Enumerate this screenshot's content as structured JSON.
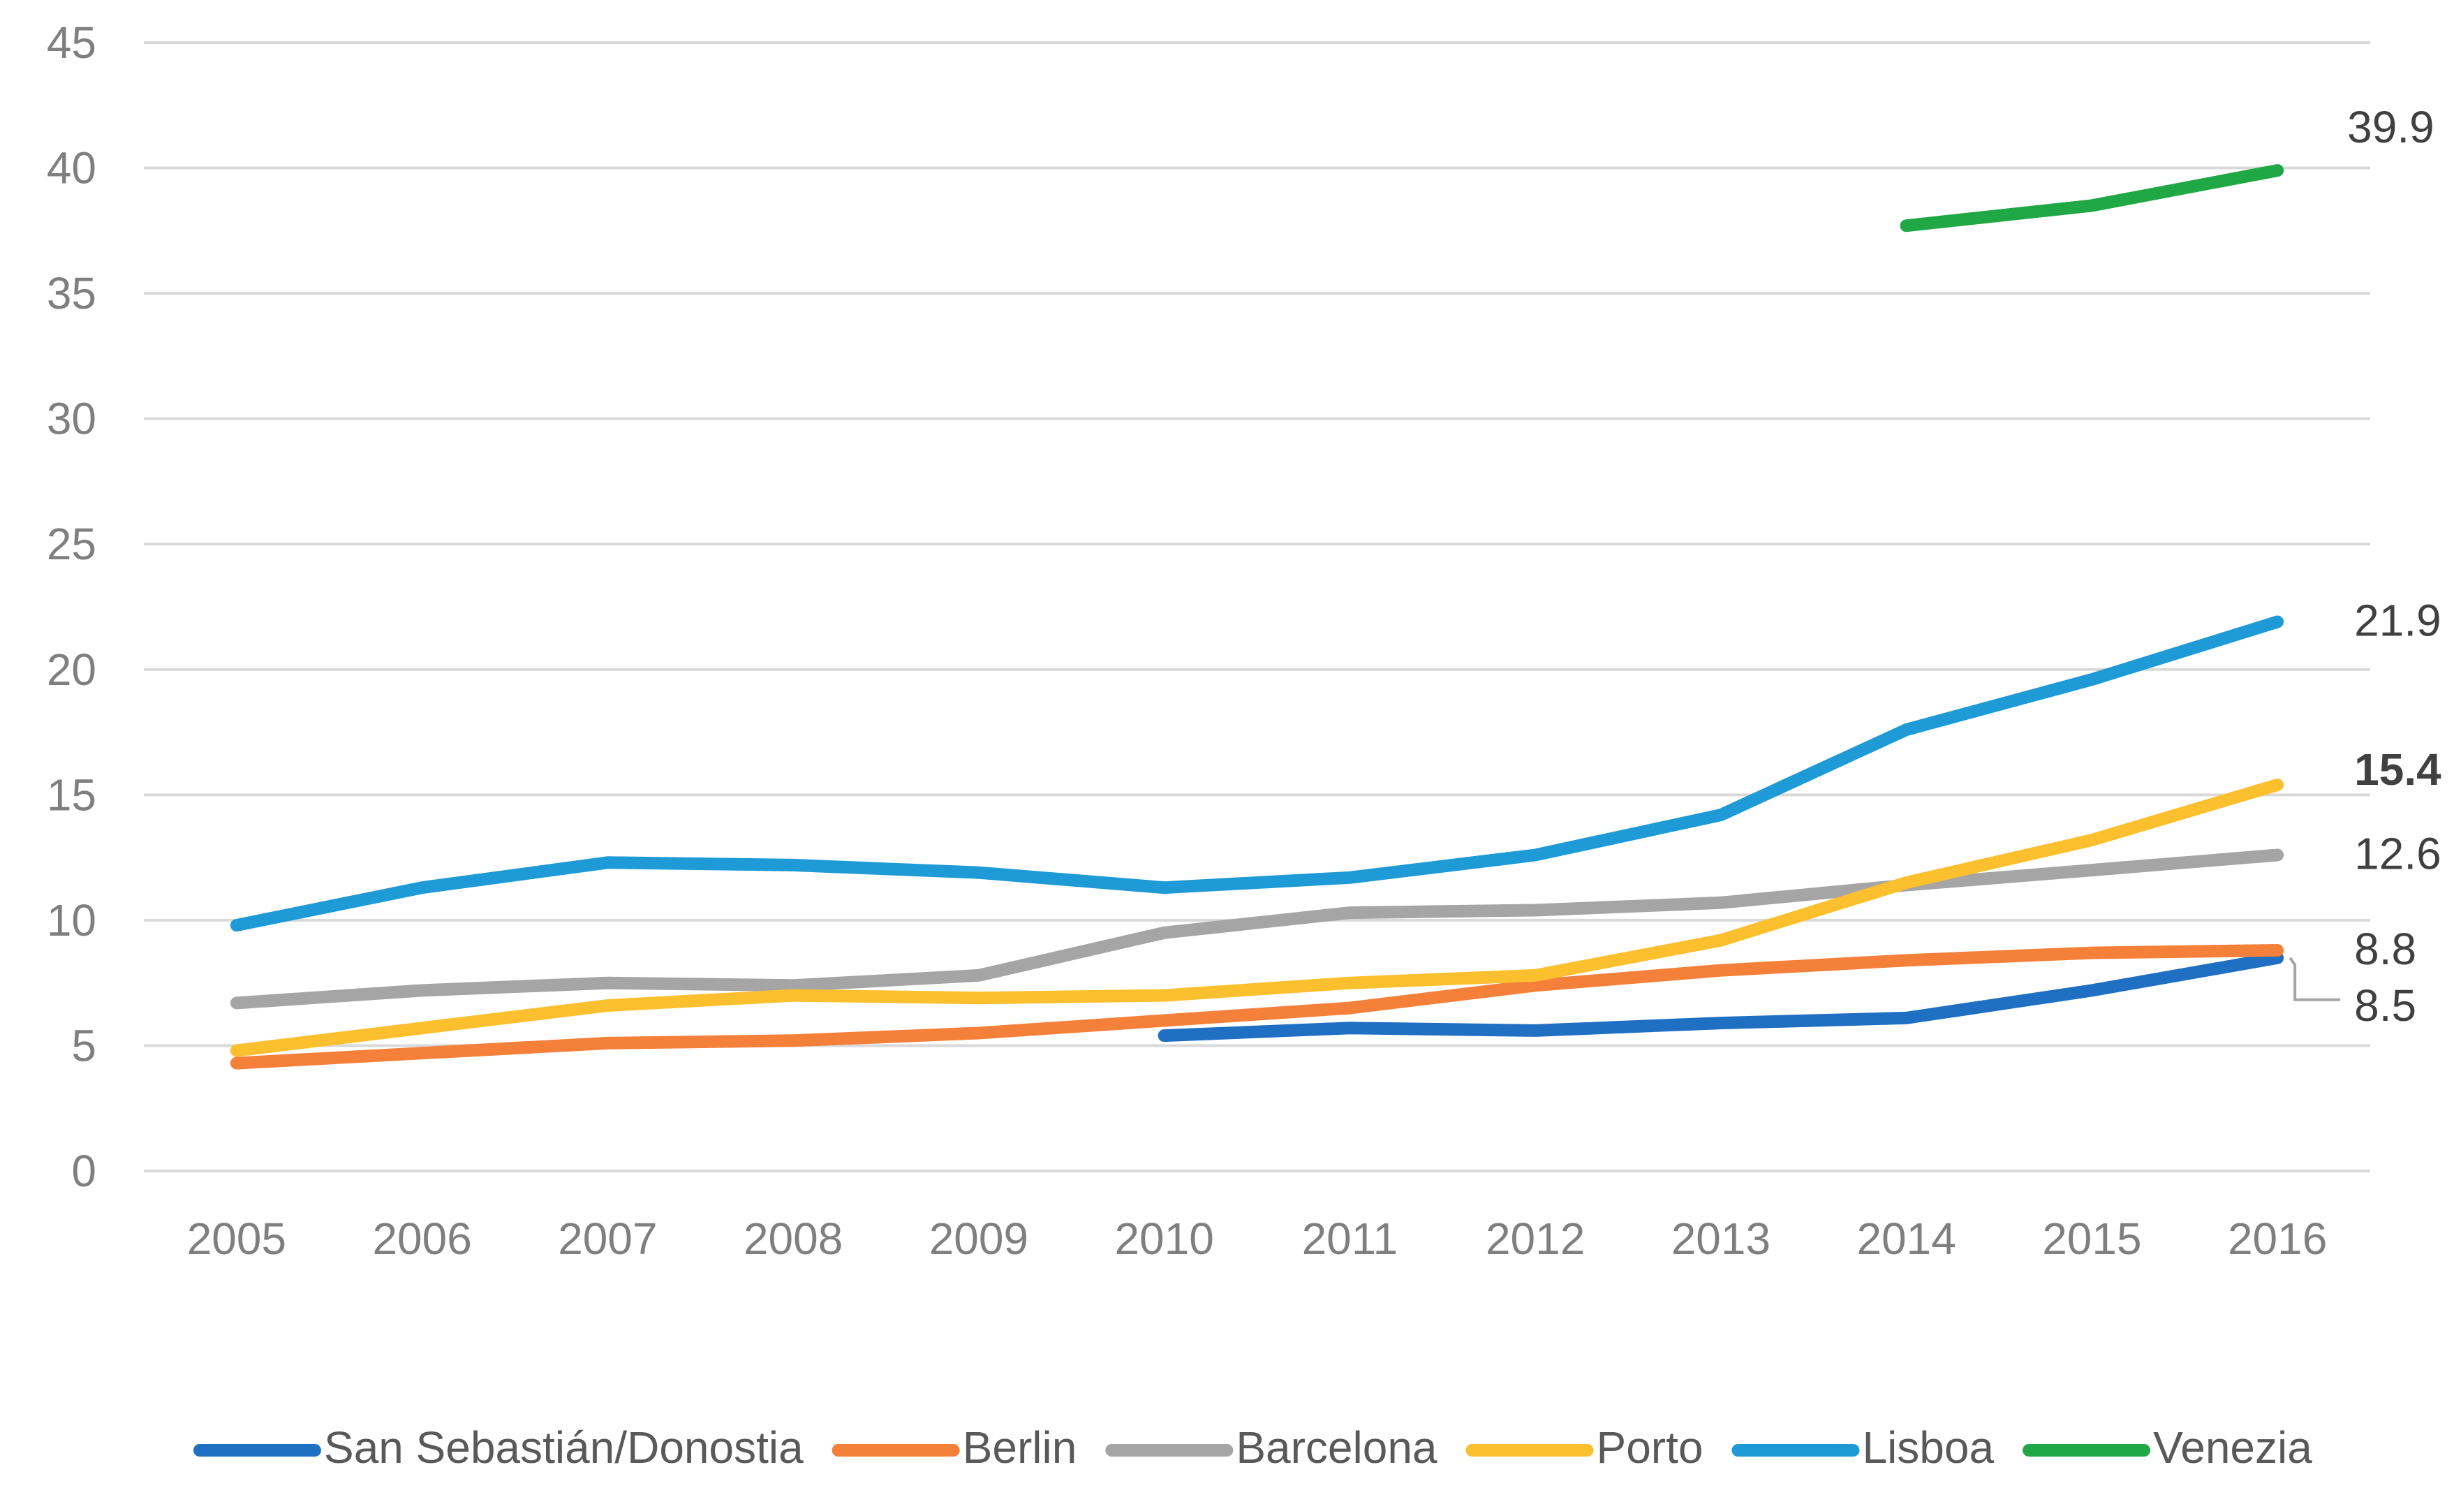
{
  "chart_data": {
    "type": "line",
    "x": [
      2005,
      2006,
      2007,
      2008,
      2009,
      2010,
      2011,
      2012,
      2013,
      2014,
      2015,
      2016
    ],
    "ylim": [
      0,
      45
    ],
    "yticks": [
      0,
      5,
      10,
      15,
      20,
      25,
      30,
      35,
      40,
      45
    ],
    "grid": true,
    "legend_position": "bottom",
    "series": [
      {
        "name": "San Sebastián/Donostia",
        "color": "#1f6fc2",
        "values": [
          null,
          null,
          null,
          null,
          null,
          5.4,
          5.7,
          5.6,
          5.9,
          6.1,
          7.2,
          8.5
        ]
      },
      {
        "name": "Berlin",
        "color": "#f5803a",
        "values": [
          4.3,
          4.7,
          5.1,
          5.2,
          5.5,
          6.0,
          6.5,
          7.4,
          8.0,
          8.4,
          8.7,
          8.8
        ]
      },
      {
        "name": "Barcelona",
        "color": "#a5a5a5",
        "values": [
          6.7,
          7.2,
          7.5,
          7.4,
          7.8,
          9.5,
          10.3,
          10.4,
          10.7,
          11.4,
          12.0,
          12.6
        ]
      },
      {
        "name": "Porto",
        "color": "#fcc02e",
        "values": [
          4.8,
          5.7,
          6.6,
          7.0,
          6.9,
          7.0,
          7.5,
          7.8,
          9.2,
          11.5,
          13.2,
          15.4
        ]
      },
      {
        "name": "Lisboa",
        "color": "#1e9ad6",
        "values": [
          9.8,
          11.3,
          12.3,
          12.2,
          11.9,
          11.3,
          11.7,
          12.6,
          14.2,
          17.6,
          19.6,
          21.9
        ]
      },
      {
        "name": "Venezia",
        "color": "#21a846",
        "values": [
          null,
          null,
          null,
          null,
          null,
          null,
          null,
          null,
          null,
          37.7,
          38.5,
          39.9
        ]
      }
    ],
    "end_labels": [
      {
        "series": "Venezia",
        "text": "39.9",
        "bold": false
      },
      {
        "series": "Lisboa",
        "text": "21.9",
        "bold": false
      },
      {
        "series": "Porto",
        "text": "15.4",
        "bold": true
      },
      {
        "series": "Barcelona",
        "text": "12.6",
        "bold": false
      },
      {
        "series": "Berlin",
        "text": "8.8",
        "bold": false
      },
      {
        "series": "San Sebastián/Donostia",
        "text": "8.5",
        "bold": false
      }
    ]
  }
}
